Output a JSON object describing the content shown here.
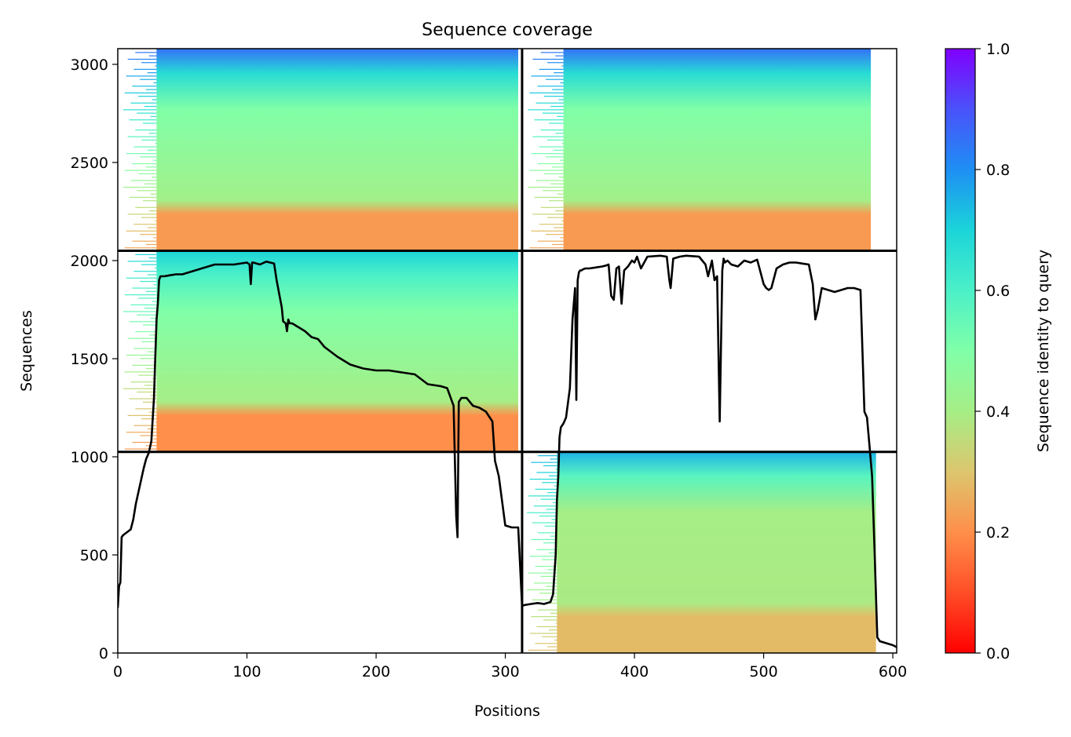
{
  "chart_data": {
    "type": "heatmap",
    "title": "Sequence coverage",
    "xlabel": "Positions",
    "ylabel": "Sequences",
    "xlim": [
      0,
      603
    ],
    "ylim": [
      0,
      3080
    ],
    "xticks": [
      0,
      100,
      200,
      300,
      400,
      500,
      600
    ],
    "yticks": [
      0,
      500,
      1000,
      1500,
      2000,
      2500,
      3000
    ],
    "colorbar": {
      "label": "Sequence identity to query",
      "range": [
        0,
        1
      ],
      "ticks": [
        0.0,
        0.2,
        0.4,
        0.6,
        0.8,
        1.0
      ],
      "tick_labels": [
        "0.0",
        "0.2",
        "0.4",
        "0.6",
        "0.8",
        "1.0"
      ],
      "colormap": "rainbow_r"
    },
    "chain_boundary_x": 313,
    "msa_block_boundaries_y": [
      1025,
      2050
    ],
    "msa_blocks": [
      {
        "name": "top-left",
        "x": [
          0,
          313
        ],
        "y": [
          2050,
          3080
        ],
        "fill_x_start": 30,
        "fill_x_end": 310,
        "identity_top": 0.85,
        "identity_mid": 0.5,
        "identity_bottom": 0.22
      },
      {
        "name": "top-right",
        "x": [
          313,
          603
        ],
        "y": [
          2050,
          3080
        ],
        "fill_x_start": 345,
        "fill_x_end": 583,
        "identity_top": 0.85,
        "identity_mid": 0.5,
        "identity_bottom": 0.22
      },
      {
        "name": "middle-left",
        "x": [
          0,
          313
        ],
        "y": [
          1025,
          2050
        ],
        "fill_x_start": 30,
        "fill_x_end": 310,
        "identity_top": 0.7,
        "identity_mid": 0.5,
        "identity_bottom": 0.2
      },
      {
        "name": "bottom-right",
        "x": [
          313,
          603
        ],
        "y": [
          0,
          1025
        ],
        "fill_x_start": 340,
        "fill_x_end": 587,
        "identity_top": 0.75,
        "identity_mid": 0.4,
        "identity_bottom": 0.28
      }
    ],
    "coverage_series": [
      {
        "x": [
          0,
          1,
          2,
          3,
          4,
          6,
          8,
          10,
          12,
          14,
          16,
          18,
          20,
          22,
          24,
          26,
          28,
          29,
          30,
          31,
          32,
          33,
          34,
          36,
          40,
          45,
          50,
          60,
          70,
          75,
          80,
          90,
          100,
          102,
          103,
          104,
          105,
          110,
          115,
          118,
          121,
          123,
          125,
          127,
          128,
          130,
          131,
          132,
          133,
          135,
          140,
          145,
          150,
          155,
          160,
          170,
          180,
          190,
          200,
          210,
          220,
          230,
          240,
          250,
          255,
          260,
          262,
          263,
          264,
          265,
          266,
          270,
          275,
          280,
          285,
          290,
          292,
          295,
          300,
          305,
          310,
          313
        ],
        "y": [
          230,
          340,
          360,
          590,
          600,
          610,
          620,
          630,
          680,
          760,
          820,
          880,
          940,
          990,
          1020,
          1080,
          1300,
          1500,
          1700,
          1780,
          1900,
          1920,
          1920,
          1920,
          1925,
          1930,
          1930,
          1950,
          1970,
          1980,
          1980,
          1980,
          1990,
          1980,
          1880,
          1990,
          1990,
          1980,
          1995,
          1990,
          1985,
          1900,
          1830,
          1760,
          1690,
          1680,
          1640,
          1700,
          1680,
          1680,
          1660,
          1640,
          1610,
          1600,
          1560,
          1510,
          1470,
          1450,
          1440,
          1440,
          1430,
          1420,
          1370,
          1360,
          1350,
          1260,
          700,
          590,
          1280,
          1290,
          1300,
          1300,
          1260,
          1250,
          1230,
          1180,
          980,
          900,
          650,
          640,
          640,
          240
        ]
      },
      {
        "x": [
          313,
          315,
          320,
          325,
          330,
          335,
          337,
          339,
          340,
          341,
          342,
          343,
          345,
          347,
          350,
          352,
          354,
          355,
          356,
          357,
          358,
          359,
          360,
          362,
          365,
          370,
          375,
          378,
          380,
          382,
          384,
          386,
          388,
          390,
          392,
          395,
          398,
          400,
          402,
          405,
          410,
          420,
          425,
          427,
          428,
          430,
          435,
          440,
          450,
          455,
          457,
          460,
          462,
          464,
          466,
          468,
          469,
          470,
          472,
          475,
          480,
          485,
          490,
          495,
          500,
          502,
          504,
          506,
          510,
          515,
          520,
          525,
          530,
          535,
          538,
          540,
          542,
          545,
          550,
          555,
          560,
          565,
          570,
          575,
          578,
          580,
          582,
          584,
          586,
          588,
          590,
          595,
          600,
          603
        ],
        "y": [
          240,
          245,
          250,
          255,
          250,
          260,
          300,
          500,
          780,
          900,
          1100,
          1150,
          1170,
          1200,
          1350,
          1700,
          1860,
          1290,
          1900,
          1940,
          1950,
          1950,
          1955,
          1960,
          1960,
          1965,
          1970,
          1975,
          1980,
          1820,
          1800,
          1960,
          1970,
          1780,
          1950,
          1970,
          2000,
          1990,
          2020,
          1960,
          2020,
          2025,
          2020,
          1900,
          1860,
          2010,
          2020,
          2025,
          2020,
          1980,
          1920,
          2000,
          1900,
          1920,
          1180,
          1950,
          2010,
          1990,
          2000,
          1980,
          1970,
          2000,
          1990,
          2005,
          1880,
          1860,
          1850,
          1860,
          1960,
          1980,
          1990,
          1990,
          1985,
          1980,
          1880,
          1700,
          1750,
          1860,
          1850,
          1840,
          1850,
          1860,
          1860,
          1850,
          1230,
          1200,
          1050,
          900,
          500,
          80,
          60,
          50,
          40,
          30
        ]
      }
    ]
  }
}
